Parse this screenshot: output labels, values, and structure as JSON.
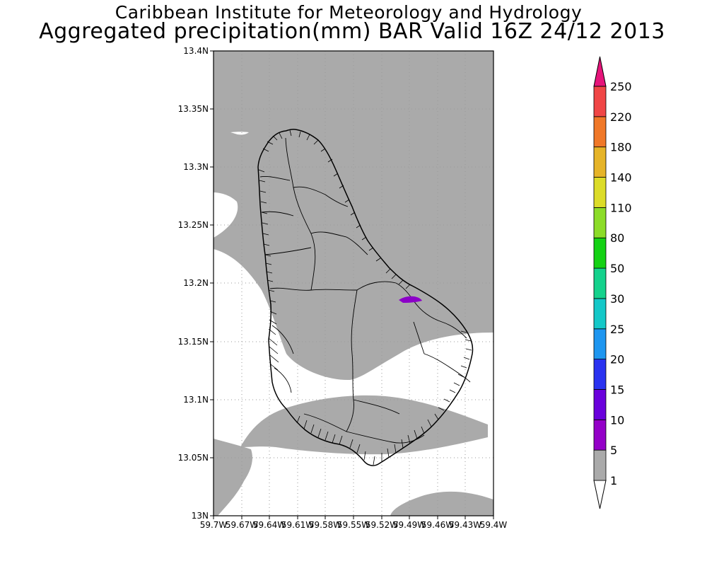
{
  "header": {
    "institute": "Caribbean Institute for Meteorology and Hydrology",
    "product": "Aggregated precipitation(mm) BAR Valid 16Z 24/12 2013"
  },
  "map": {
    "lat_range": [
      13.0,
      13.4
    ],
    "lon_range": [
      -59.7,
      -59.4
    ],
    "lat_ticks": [
      "13.4N",
      "13.35N",
      "13.3N",
      "13.25N",
      "13.2N",
      "13.15N",
      "13.1N",
      "13.05N",
      "13N"
    ],
    "lon_ticks": [
      "59.7W",
      "59.67W",
      "59.64W",
      "59.61W",
      "59.58W",
      "59.55W",
      "59.52W",
      "59.49W",
      "59.46W",
      "59.43W",
      "59.4W"
    ],
    "grid": "dotted",
    "colors": {
      "ocean_fill": "#ffffff",
      "precip_1_5": "#aaaaaa",
      "precip_5_10": "#8c00c8",
      "outline": "#000000"
    }
  },
  "colorbar": {
    "labels": [
      "1",
      "5",
      "10",
      "15",
      "20",
      "25",
      "30",
      "50",
      "80",
      "110",
      "140",
      "180",
      "220",
      "250"
    ],
    "colors": [
      "#ffffff",
      "#aaaaaa",
      "#9400c8",
      "#6a00dc",
      "#2a32f0",
      "#1e96f0",
      "#14c8c8",
      "#14d28c",
      "#14d214",
      "#8cdc28",
      "#dcdc28",
      "#e6b428",
      "#f07828",
      "#f04646",
      "#e6147a"
    ]
  }
}
